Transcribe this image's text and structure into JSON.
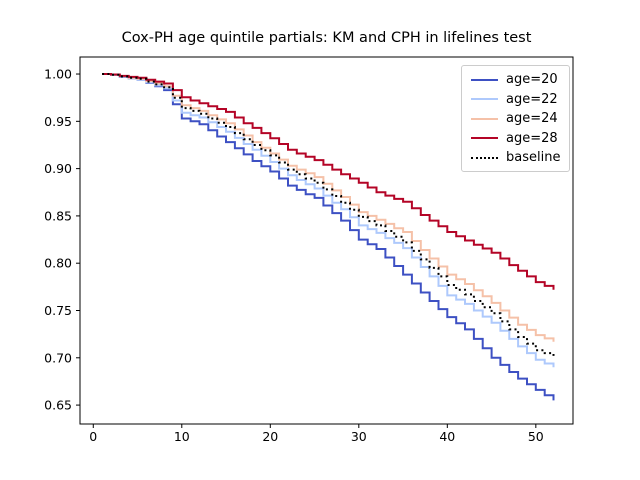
{
  "figure": {
    "background": "#ffffff",
    "frame_color": "#000000",
    "legend_border_color": "#cccccc"
  },
  "chart_data": {
    "type": "line",
    "step_mode": "post",
    "title": "Cox-PH age quintile partials: KM and CPH in lifelines test",
    "xlabel": "",
    "ylabel": "",
    "grid": false,
    "legend_position": "upper right",
    "xlim": [
      -1.5,
      54.2
    ],
    "ylim": [
      0.63,
      1.018
    ],
    "xtick_values": [
      0,
      10,
      20,
      30,
      40,
      50
    ],
    "xtick_labels": [
      "0",
      "10",
      "20",
      "30",
      "40",
      "50"
    ],
    "ytick_values": [
      0.65,
      0.7,
      0.75,
      0.8,
      0.85,
      0.9,
      0.95,
      1.0
    ],
    "ytick_labels": [
      "0.65",
      "0.70",
      "0.75",
      "0.80",
      "0.85",
      "0.90",
      "0.95",
      "1.00"
    ],
    "x": [
      1,
      2,
      3,
      4,
      5,
      6,
      7,
      8,
      9,
      10,
      11,
      12,
      13,
      14,
      15,
      16,
      17,
      18,
      19,
      20,
      21,
      22,
      23,
      24,
      25,
      26,
      27,
      28,
      29,
      30,
      31,
      32,
      33,
      34,
      35,
      36,
      37,
      38,
      39,
      40,
      41,
      42,
      43,
      44,
      45,
      46,
      47,
      48,
      49,
      50,
      51,
      52
    ],
    "series": [
      {
        "name": "age=20",
        "color": "#3d50c3",
        "style": "solid",
        "values": [
          1.0,
          0.999,
          0.997,
          0.9955,
          0.994,
          0.9905,
          0.987,
          0.983,
          0.968,
          0.953,
          0.95,
          0.947,
          0.9405,
          0.934,
          0.928,
          0.9215,
          0.915,
          0.908,
          0.9025,
          0.897,
          0.8895,
          0.882,
          0.8775,
          0.873,
          0.869,
          0.861,
          0.853,
          0.845,
          0.835,
          0.825,
          0.82,
          0.815,
          0.806,
          0.797,
          0.788,
          0.7785,
          0.769,
          0.76,
          0.7515,
          0.743,
          0.7365,
          0.73,
          0.72,
          0.71,
          0.7,
          0.6925,
          0.685,
          0.678,
          0.672,
          0.666,
          0.6605,
          0.655
        ]
      },
      {
        "name": "age=22",
        "color": "#aec9fc",
        "style": "solid",
        "values": [
          1.0,
          0.9992,
          0.9974,
          0.9957,
          0.994,
          0.991,
          0.988,
          0.985,
          0.972,
          0.959,
          0.9565,
          0.954,
          0.949,
          0.944,
          0.939,
          0.9325,
          0.926,
          0.92,
          0.9135,
          0.907,
          0.9,
          0.893,
          0.888,
          0.8835,
          0.879,
          0.8715,
          0.864,
          0.857,
          0.8485,
          0.84,
          0.836,
          0.832,
          0.8265,
          0.8215,
          0.816,
          0.806,
          0.796,
          0.786,
          0.776,
          0.766,
          0.7615,
          0.757,
          0.75,
          0.7435,
          0.737,
          0.7285,
          0.72,
          0.712,
          0.705,
          0.698,
          0.694,
          0.69
        ]
      },
      {
        "name": "age=24",
        "color": "#f5c1a8",
        "style": "solid",
        "values": [
          1.0,
          0.9993,
          0.9977,
          0.996,
          0.995,
          0.9925,
          0.99,
          0.987,
          0.977,
          0.967,
          0.964,
          0.961,
          0.9565,
          0.952,
          0.948,
          0.9415,
          0.935,
          0.928,
          0.922,
          0.916,
          0.9095,
          0.903,
          0.899,
          0.895,
          0.891,
          0.884,
          0.877,
          0.87,
          0.862,
          0.854,
          0.85,
          0.846,
          0.8415,
          0.837,
          0.833,
          0.8235,
          0.814,
          0.805,
          0.7965,
          0.788,
          0.783,
          0.778,
          0.7715,
          0.765,
          0.758,
          0.75,
          0.7425,
          0.735,
          0.7295,
          0.724,
          0.7205,
          0.717
        ]
      },
      {
        "name": "age=28",
        "color": "#b40426",
        "style": "solid",
        "values": [
          1.0,
          0.9995,
          0.998,
          0.997,
          0.996,
          0.994,
          0.992,
          0.99,
          0.983,
          0.9755,
          0.972,
          0.969,
          0.966,
          0.963,
          0.96,
          0.954,
          0.948,
          0.943,
          0.9375,
          0.932,
          0.926,
          0.92,
          0.916,
          0.9125,
          0.909,
          0.904,
          0.899,
          0.894,
          0.8895,
          0.885,
          0.88,
          0.875,
          0.8715,
          0.868,
          0.865,
          0.858,
          0.851,
          0.845,
          0.839,
          0.833,
          0.8285,
          0.824,
          0.8195,
          0.8155,
          0.811,
          0.805,
          0.798,
          0.792,
          0.786,
          0.78,
          0.776,
          0.772
        ]
      },
      {
        "name": "baseline",
        "color": "#000000",
        "style": "dotted",
        "values": [
          1.0,
          0.9993,
          0.9975,
          0.996,
          0.995,
          0.992,
          0.989,
          0.986,
          0.975,
          0.964,
          0.961,
          0.958,
          0.953,
          0.9485,
          0.944,
          0.9375,
          0.931,
          0.925,
          0.9195,
          0.914,
          0.9065,
          0.899,
          0.894,
          0.8895,
          0.885,
          0.878,
          0.871,
          0.864,
          0.8565,
          0.849,
          0.8445,
          0.84,
          0.834,
          0.828,
          0.822,
          0.813,
          0.804,
          0.795,
          0.786,
          0.777,
          0.772,
          0.767,
          0.76,
          0.7535,
          0.747,
          0.7385,
          0.73,
          0.722,
          0.715,
          0.708,
          0.705,
          0.702
        ]
      }
    ]
  }
}
